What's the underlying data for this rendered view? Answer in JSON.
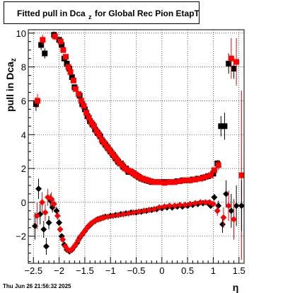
{
  "chart_data": {
    "type": "scatter",
    "title": "Fitted pull in Dca",
    "title_subscript": "z",
    "title_suffix": "for Global Rec Pion EtapT",
    "ylabel": "pull in Dca",
    "ylabel_subscript": "z",
    "xlabel": "η",
    "xlim": [
      -2.6,
      1.6
    ],
    "ylim": [
      -3.6,
      10.2
    ],
    "grid": true,
    "x_ticks": [
      -2.5,
      -2,
      -1.5,
      -1,
      -0.5,
      0,
      0.5,
      1,
      1.5
    ],
    "x_tick_labels": [
      "−2.5",
      "−2",
      "−1.5",
      "−1",
      "−0.5",
      "0",
      "0.5",
      "1",
      "1.5"
    ],
    "y_ticks": [
      -2,
      0,
      2,
      4,
      6,
      8,
      10
    ],
    "y_tick_labels": [
      "−2",
      "0",
      "2",
      "4",
      "6",
      "8",
      "10"
    ],
    "series": [
      {
        "marker": "square",
        "color": "#000000",
        "points": [
          [
            -2.45,
            5.8,
            0.4
          ],
          [
            -2.35,
            9.3,
            0.3
          ],
          [
            -2.28,
            8.8,
            0.3
          ],
          [
            -2.1,
            9.9,
            0.2
          ],
          [
            -2.0,
            9.6,
            0.15
          ],
          [
            -1.95,
            9.3,
            0.12
          ],
          [
            -1.9,
            8.5,
            0.1
          ],
          [
            -1.85,
            8.2,
            0.1
          ],
          [
            -1.8,
            7.9,
            0.1
          ],
          [
            -1.75,
            7.4,
            0.1
          ],
          [
            -1.7,
            6.8,
            0.1
          ],
          [
            -1.6,
            6.3,
            0.08
          ],
          [
            -1.55,
            5.8,
            0.06
          ],
          [
            -1.5,
            5.5,
            0.06
          ],
          [
            -1.45,
            5.1,
            0.06
          ],
          [
            -1.4,
            4.8,
            0.05
          ],
          [
            -1.35,
            4.6,
            0.05
          ],
          [
            -1.3,
            4.3,
            0.05
          ],
          [
            -1.25,
            4.1,
            0.05
          ],
          [
            -1.2,
            3.9,
            0.05
          ],
          [
            -1.15,
            3.6,
            0.05
          ],
          [
            -1.1,
            3.4,
            0.05
          ],
          [
            -1.05,
            3.2,
            0.05
          ],
          [
            -1.0,
            3.0,
            0.05
          ],
          [
            -0.95,
            2.8,
            0.05
          ],
          [
            -0.9,
            2.6,
            0.05
          ],
          [
            -0.85,
            2.4,
            0.05
          ],
          [
            -0.8,
            2.3,
            0.05
          ],
          [
            -0.75,
            2.1,
            0.05
          ],
          [
            -0.7,
            2.0,
            0.05
          ],
          [
            -0.65,
            1.8,
            0.05
          ],
          [
            -0.6,
            1.8,
            0.05
          ],
          [
            -0.55,
            1.7,
            0.05
          ],
          [
            -0.5,
            1.6,
            0.05
          ],
          [
            -0.45,
            1.5,
            0.05
          ],
          [
            -0.4,
            1.4,
            0.05
          ],
          [
            -0.35,
            1.35,
            0.05
          ],
          [
            -0.3,
            1.3,
            0.05
          ],
          [
            -0.25,
            1.25,
            0.05
          ],
          [
            -0.2,
            1.2,
            0.05
          ],
          [
            -0.1,
            1.2,
            0.05
          ],
          [
            0.0,
            1.2,
            0.05
          ],
          [
            0.1,
            1.2,
            0.05
          ],
          [
            0.2,
            1.2,
            0.05
          ],
          [
            0.3,
            1.25,
            0.05
          ],
          [
            0.4,
            1.3,
            0.05
          ],
          [
            0.5,
            1.3,
            0.05
          ],
          [
            0.6,
            1.35,
            0.05
          ],
          [
            0.7,
            1.4,
            0.05
          ],
          [
            0.8,
            1.45,
            0.06
          ],
          [
            0.9,
            1.55,
            0.08
          ],
          [
            1.0,
            1.7,
            0.1
          ],
          [
            1.08,
            2.3,
            0.2
          ],
          [
            1.15,
            4.5,
            0.6
          ],
          [
            1.22,
            4.5,
            0.8
          ],
          [
            1.3,
            8.2,
            0.6
          ],
          [
            1.4,
            7.9,
            0.6
          ]
        ]
      },
      {
        "marker": "square",
        "color": "#ff0000",
        "points": [
          [
            -2.42,
            6.0,
            0.4
          ],
          [
            -2.32,
            9.6,
            0.3
          ],
          [
            -2.08,
            9.8,
            0.2
          ],
          [
            -1.97,
            9.5,
            0.15
          ],
          [
            -1.92,
            9.0,
            0.12
          ],
          [
            -1.87,
            8.6,
            0.1
          ],
          [
            -1.82,
            8.0,
            0.1
          ],
          [
            -1.78,
            7.7,
            0.1
          ],
          [
            -1.72,
            7.2,
            0.1
          ],
          [
            -1.68,
            6.7,
            0.1
          ],
          [
            -1.62,
            6.4,
            0.08
          ],
          [
            -1.57,
            6.0,
            0.06
          ],
          [
            -1.52,
            5.7,
            0.06
          ],
          [
            -1.47,
            5.3,
            0.06
          ],
          [
            -1.42,
            5.0,
            0.05
          ],
          [
            -1.37,
            4.7,
            0.05
          ],
          [
            -1.32,
            4.5,
            0.05
          ],
          [
            -1.27,
            4.2,
            0.05
          ],
          [
            -1.22,
            4.0,
            0.05
          ],
          [
            -1.17,
            3.7,
            0.05
          ],
          [
            -1.12,
            3.5,
            0.05
          ],
          [
            -1.07,
            3.3,
            0.05
          ],
          [
            -1.02,
            3.1,
            0.05
          ],
          [
            -0.97,
            2.9,
            0.05
          ],
          [
            -0.92,
            2.7,
            0.05
          ],
          [
            -0.87,
            2.5,
            0.05
          ],
          [
            -0.82,
            2.3,
            0.05
          ],
          [
            -0.77,
            2.2,
            0.05
          ],
          [
            -0.72,
            2.0,
            0.05
          ],
          [
            -0.67,
            1.9,
            0.05
          ],
          [
            -0.62,
            1.85,
            0.05
          ],
          [
            -0.57,
            1.75,
            0.05
          ],
          [
            -0.52,
            1.65,
            0.05
          ],
          [
            -0.47,
            1.55,
            0.05
          ],
          [
            -0.42,
            1.45,
            0.05
          ],
          [
            -0.37,
            1.4,
            0.05
          ],
          [
            -0.32,
            1.35,
            0.05
          ],
          [
            -0.27,
            1.3,
            0.05
          ],
          [
            -0.22,
            1.25,
            0.05
          ],
          [
            -0.15,
            1.2,
            0.05
          ],
          [
            -0.05,
            1.2,
            0.05
          ],
          [
            0.05,
            1.15,
            0.05
          ],
          [
            0.15,
            1.2,
            0.05
          ],
          [
            0.25,
            1.2,
            0.05
          ],
          [
            0.35,
            1.25,
            0.05
          ],
          [
            0.45,
            1.3,
            0.05
          ],
          [
            0.55,
            1.3,
            0.05
          ],
          [
            0.65,
            1.35,
            0.05
          ],
          [
            0.75,
            1.4,
            0.05
          ],
          [
            0.85,
            1.5,
            0.06
          ],
          [
            0.95,
            1.6,
            0.07
          ],
          [
            1.02,
            1.9,
            0.1
          ],
          [
            1.1,
            2.2,
            0.3
          ],
          [
            1.35,
            8.5,
            1.2
          ],
          [
            1.45,
            8.3,
            1.4
          ],
          [
            1.55,
            1.6,
            5.0
          ]
        ]
      },
      {
        "marker": "diamond",
        "color": "#000000",
        "points": [
          [
            -2.47,
            -1.4,
            0.8
          ],
          [
            -2.4,
            0.8,
            0.6
          ],
          [
            -2.37,
            -0.7,
            0.6
          ],
          [
            -2.3,
            -1.6,
            0.5
          ],
          [
            -2.25,
            -2.6,
            0.5
          ],
          [
            -2.2,
            -1.2,
            0.4
          ],
          [
            -2.17,
            0.1,
            0.4
          ],
          [
            -2.13,
            -0.3,
            0.3
          ],
          [
            -2.05,
            -0.5,
            0.25
          ],
          [
            -2.0,
            -1.2,
            0.2
          ],
          [
            -1.95,
            -2.0,
            0.15
          ],
          [
            -1.9,
            -2.5,
            0.12
          ],
          [
            -1.85,
            -2.8,
            0.1
          ],
          [
            -1.8,
            -2.9,
            0.1
          ],
          [
            -1.75,
            -2.8,
            0.08
          ],
          [
            -1.7,
            -2.6,
            0.08
          ],
          [
            -1.65,
            -2.4,
            0.06
          ],
          [
            -1.6,
            -2.1,
            0.06
          ],
          [
            -1.55,
            -1.9,
            0.06
          ],
          [
            -1.5,
            -1.7,
            0.05
          ],
          [
            -1.45,
            -1.5,
            0.05
          ],
          [
            -1.4,
            -1.35,
            0.05
          ],
          [
            -1.35,
            -1.2,
            0.05
          ],
          [
            -1.3,
            -1.1,
            0.05
          ],
          [
            -1.25,
            -1.0,
            0.05
          ],
          [
            -1.2,
            -0.95,
            0.05
          ],
          [
            -1.15,
            -0.9,
            0.05
          ],
          [
            -1.1,
            -0.85,
            0.05
          ],
          [
            -1.0,
            -0.8,
            0.05
          ],
          [
            -0.9,
            -0.75,
            0.05
          ],
          [
            -0.8,
            -0.7,
            0.05
          ],
          [
            -0.7,
            -0.65,
            0.05
          ],
          [
            -0.6,
            -0.6,
            0.05
          ],
          [
            -0.5,
            -0.6,
            0.05
          ],
          [
            -0.4,
            -0.55,
            0.05
          ],
          [
            -0.3,
            -0.5,
            0.05
          ],
          [
            -0.2,
            -0.45,
            0.05
          ],
          [
            -0.1,
            -0.4,
            0.05
          ],
          [
            0.0,
            -0.35,
            0.05
          ],
          [
            0.1,
            -0.3,
            0.05
          ],
          [
            0.2,
            -0.3,
            0.05
          ],
          [
            0.3,
            -0.25,
            0.05
          ],
          [
            0.4,
            -0.25,
            0.05
          ],
          [
            0.5,
            -0.2,
            0.05
          ],
          [
            0.6,
            -0.15,
            0.05
          ],
          [
            0.7,
            -0.1,
            0.05
          ],
          [
            0.8,
            -0.05,
            0.06
          ],
          [
            0.9,
            -0.05,
            0.08
          ],
          [
            0.95,
            -0.2,
            0.1
          ],
          [
            1.02,
            0.3,
            0.2
          ],
          [
            1.1,
            -0.2,
            0.3
          ],
          [
            1.18,
            -1.3,
            0.5
          ],
          [
            1.25,
            0.5,
            0.8
          ],
          [
            1.35,
            -0.5,
            1.0
          ],
          [
            1.45,
            -0.2,
            1.2
          ],
          [
            1.55,
            -0.2,
            1.5
          ]
        ]
      },
      {
        "marker": "diamond",
        "color": "#ff0000",
        "points": [
          [
            -2.43,
            -0.8,
            0.8
          ],
          [
            -2.33,
            0.0,
            0.6
          ],
          [
            -2.27,
            -0.6,
            0.5
          ],
          [
            -2.22,
            0.3,
            0.5
          ],
          [
            -2.15,
            0.2,
            0.4
          ],
          [
            -2.1,
            -0.1,
            0.3
          ],
          [
            -2.03,
            -0.8,
            0.25
          ],
          [
            -1.98,
            -1.6,
            0.2
          ],
          [
            -1.93,
            -2.2,
            0.15
          ],
          [
            -1.88,
            -2.6,
            0.12
          ],
          [
            -1.83,
            -2.8,
            0.1
          ],
          [
            -1.78,
            -2.85,
            0.1
          ],
          [
            -1.73,
            -2.7,
            0.08
          ],
          [
            -1.68,
            -2.5,
            0.08
          ],
          [
            -1.63,
            -2.25,
            0.06
          ],
          [
            -1.58,
            -2.0,
            0.06
          ],
          [
            -1.53,
            -1.8,
            0.05
          ],
          [
            -1.48,
            -1.6,
            0.05
          ],
          [
            -1.43,
            -1.4,
            0.05
          ],
          [
            -1.38,
            -1.25,
            0.05
          ],
          [
            -1.33,
            -1.15,
            0.05
          ],
          [
            -1.28,
            -1.05,
            0.05
          ],
          [
            -1.23,
            -1.0,
            0.05
          ],
          [
            -1.18,
            -0.95,
            0.05
          ],
          [
            -1.13,
            -0.9,
            0.05
          ],
          [
            -1.05,
            -0.85,
            0.05
          ],
          [
            -0.95,
            -0.8,
            0.05
          ],
          [
            -0.85,
            -0.75,
            0.05
          ],
          [
            -0.75,
            -0.7,
            0.05
          ],
          [
            -0.65,
            -0.65,
            0.05
          ],
          [
            -0.55,
            -0.6,
            0.05
          ],
          [
            -0.45,
            -0.55,
            0.05
          ],
          [
            -0.35,
            -0.5,
            0.05
          ],
          [
            -0.25,
            -0.45,
            0.05
          ],
          [
            -0.15,
            -0.4,
            0.05
          ],
          [
            -0.05,
            -0.3,
            0.05
          ],
          [
            0.05,
            -0.25,
            0.05
          ],
          [
            0.15,
            -0.2,
            0.05
          ],
          [
            0.25,
            -0.2,
            0.05
          ],
          [
            0.35,
            -0.15,
            0.05
          ],
          [
            0.45,
            -0.15,
            0.05
          ],
          [
            0.55,
            -0.1,
            0.05
          ],
          [
            0.65,
            -0.05,
            0.05
          ],
          [
            0.75,
            0.0,
            0.05
          ],
          [
            0.85,
            0.0,
            0.06
          ],
          [
            0.93,
            0.0,
            0.08
          ],
          [
            1.0,
            -0.1,
            0.1
          ],
          [
            1.08,
            -0.5,
            0.3
          ],
          [
            1.2,
            -0.9,
            0.6
          ],
          [
            1.3,
            -0.2,
            0.9
          ],
          [
            1.4,
            -1.0,
            1.2
          ]
        ]
      }
    ]
  },
  "footer": {
    "timestamp": "Thu Jun 26 21:56:32 2025"
  }
}
